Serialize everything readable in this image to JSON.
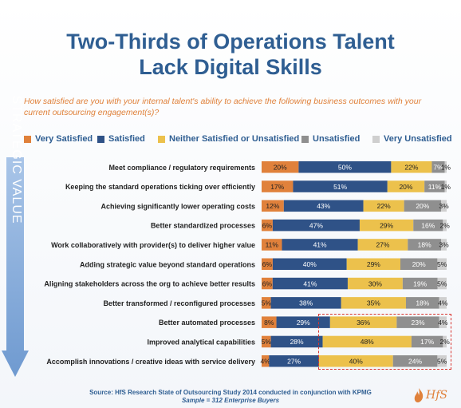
{
  "title_line1": "Two-Thirds of Operations Talent",
  "title_line2": "Lack Digital Skills",
  "question": "How satisfied are you with your internal talent's ability to achieve the following business outcomes with your current outsourcing engagement(s)?",
  "side_label": "STRATEGIC VALUE",
  "source": "Source: HfS Research State of Outsourcing Study 2014 conducted in conjunction with KPMG",
  "sample": "Sample = 312 Enterprise Buyers",
  "logo": {
    "text": "HfS",
    "icon": "hfs-flame-icon"
  },
  "colors": {
    "very_satisfied": "#e0813b",
    "satisfied": "#2f5287",
    "neutral": "#ecc14c",
    "unsatisfied": "#8f8f8f",
    "very_unsatisfied": "#cfcfcf",
    "arrow": "#7aa4d6",
    "highlight_box": "#d8342f"
  },
  "chart_data": {
    "type": "bar",
    "stacked": true,
    "orientation": "horizontal",
    "categories": [
      "Meet compliance / regulatory requirements",
      "Keeping the standard operations ticking over efficiently",
      "Achieving significantly lower operating costs",
      "Better standardized processes",
      "Work collaboratively with provider(s) to deliver higher value",
      "Adding strategic value beyond standard operations",
      "Aligning stakeholders across the org to achieve better results",
      "Better transformed / reconfigured processes",
      "Better automated processes",
      "Improved analytical capabilities",
      "Accomplish innovations / creative ideas with service delivery"
    ],
    "series": [
      {
        "name": "Very Satisfied",
        "values": [
          20,
          17,
          12,
          6,
          11,
          6,
          6,
          5,
          8,
          5,
          4
        ]
      },
      {
        "name": "Satisfied",
        "values": [
          50,
          51,
          43,
          47,
          41,
          40,
          41,
          38,
          29,
          28,
          27
        ]
      },
      {
        "name": "Neither Satisfied or Unsatisfied",
        "values": [
          22,
          20,
          22,
          29,
          27,
          29,
          30,
          35,
          36,
          48,
          40
        ]
      },
      {
        "name": "Unsatisfied",
        "values": [
          7,
          11,
          20,
          16,
          18,
          20,
          19,
          18,
          23,
          17,
          24
        ]
      },
      {
        "name": "Very Unsatisfied",
        "values": [
          1,
          1,
          3,
          2,
          3,
          5,
          5,
          4,
          4,
          2,
          5
        ]
      }
    ],
    "labels": [
      [
        "20%",
        "50%",
        "22%",
        "7%",
        "1%"
      ],
      [
        "17%",
        "51%",
        "20%",
        "11%",
        "1%"
      ],
      [
        "12%",
        "43%",
        "22%",
        "20%",
        "3%"
      ],
      [
        "6%",
        "47%",
        "29%",
        "16%",
        "2%"
      ],
      [
        "11%",
        "41%",
        "27%",
        "18%",
        "3%"
      ],
      [
        "6%",
        "40%",
        "29%",
        "20%",
        "5%"
      ],
      [
        "6%",
        "41%",
        "30%",
        "19%",
        "5%"
      ],
      [
        "5%",
        "38%",
        "35%",
        "18%",
        "4%"
      ],
      [
        "8%",
        "29%",
        "36%",
        "23%",
        "4%"
      ],
      [
        "5%",
        "28%",
        "48%",
        "17%",
        "2%"
      ],
      [
        "4%",
        "27%",
        "40%",
        "24%",
        "5%"
      ]
    ],
    "xlim": [
      0,
      100
    ],
    "legend_position": "top",
    "grid": false,
    "highlighted_rows": [
      8,
      9,
      10
    ]
  }
}
